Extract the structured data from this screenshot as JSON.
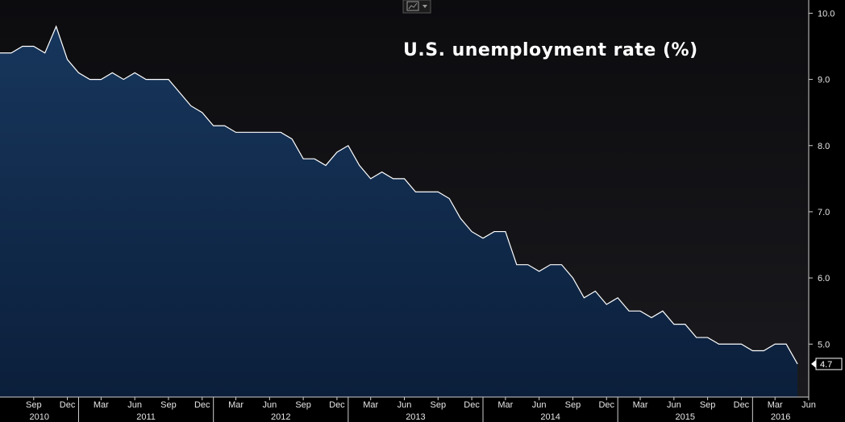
{
  "chart_data": {
    "type": "area",
    "title": "U.S. unemployment rate (%)",
    "xlabel": "",
    "ylabel": "",
    "x_start": "2010-06",
    "x_end": "2016-06",
    "ylim": [
      4.2,
      10.2
    ],
    "y_ticks": [
      "10.0",
      "9.0",
      "8.0",
      "7.0",
      "6.0",
      "5.0"
    ],
    "x_month_ticks": [
      "Sep",
      "Dec",
      "Mar",
      "Jun",
      "Sep",
      "Dec",
      "Mar",
      "Jun",
      "Sep",
      "Dec",
      "Mar",
      "Jun",
      "Sep",
      "Dec",
      "Mar",
      "Jun",
      "Sep",
      "Dec",
      "Mar",
      "Jun",
      "Sep",
      "Dec",
      "Mar",
      "Jun"
    ],
    "x_year_labels": [
      "2010",
      "2011",
      "2012",
      "2013",
      "2014",
      "2015",
      "2016"
    ],
    "last_value_label": "4.7",
    "series": [
      {
        "x": [
          "2010-06",
          "2010-07",
          "2010-08",
          "2010-09",
          "2010-10",
          "2010-11",
          "2010-12",
          "2011-01",
          "2011-02",
          "2011-03",
          "2011-04",
          "2011-05",
          "2011-06",
          "2011-07",
          "2011-08",
          "2011-09",
          "2011-10",
          "2011-11",
          "2011-12",
          "2012-01",
          "2012-02",
          "2012-03",
          "2012-04",
          "2012-05",
          "2012-06",
          "2012-07",
          "2012-08",
          "2012-09",
          "2012-10",
          "2012-11",
          "2012-12",
          "2013-01",
          "2013-02",
          "2013-03",
          "2013-04",
          "2013-05",
          "2013-06",
          "2013-07",
          "2013-08",
          "2013-09",
          "2013-10",
          "2013-11",
          "2013-12",
          "2014-01",
          "2014-02",
          "2014-03",
          "2014-04",
          "2014-05",
          "2014-06",
          "2014-07",
          "2014-08",
          "2014-09",
          "2014-10",
          "2014-11",
          "2014-12",
          "2015-01",
          "2015-02",
          "2015-03",
          "2015-04",
          "2015-05",
          "2015-06",
          "2015-07",
          "2015-08",
          "2015-09",
          "2015-10",
          "2015-11",
          "2015-12",
          "2016-01",
          "2016-02",
          "2016-03",
          "2016-04",
          "2016-05"
        ],
        "values": [
          9.4,
          9.4,
          9.5,
          9.5,
          9.4,
          9.8,
          9.3,
          9.1,
          9.0,
          9.0,
          9.1,
          9.0,
          9.1,
          9.0,
          9.0,
          9.0,
          8.8,
          8.6,
          8.5,
          8.3,
          8.3,
          8.2,
          8.2,
          8.2,
          8.2,
          8.2,
          8.1,
          7.8,
          7.8,
          7.7,
          7.9,
          8.0,
          7.7,
          7.5,
          7.6,
          7.5,
          7.5,
          7.3,
          7.3,
          7.3,
          7.2,
          6.9,
          6.7,
          6.6,
          6.7,
          6.7,
          6.2,
          6.2,
          6.1,
          6.2,
          6.2,
          6.0,
          5.7,
          5.8,
          5.6,
          5.7,
          5.5,
          5.5,
          5.4,
          5.5,
          5.3,
          5.3,
          5.1,
          5.1,
          5.0,
          5.0,
          5.0,
          4.9,
          4.9,
          5.0,
          5.0,
          4.7
        ]
      }
    ]
  },
  "colors": {
    "background": "#000000",
    "area_top": "#17365c",
    "area_bottom": "#0b1f3b",
    "line": "#ffffff",
    "axis": "#cfcfcf"
  },
  "toolbar": {
    "chart_type_icon": "line-chart-icon",
    "dropdown_icon": "chevron-down-icon"
  }
}
